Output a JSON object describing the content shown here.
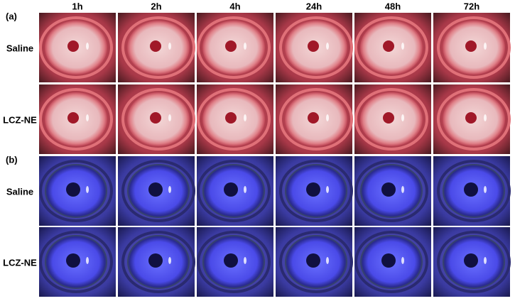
{
  "columns": [
    "1h",
    "2h",
    "4h",
    "24h",
    "48h",
    "72h"
  ],
  "panels": [
    {
      "label": "(a)",
      "rows": [
        "Saline",
        "LCZ-NE"
      ]
    },
    {
      "label": "(b)",
      "rows": [
        "Saline",
        "LCZ-NE"
      ]
    }
  ]
}
